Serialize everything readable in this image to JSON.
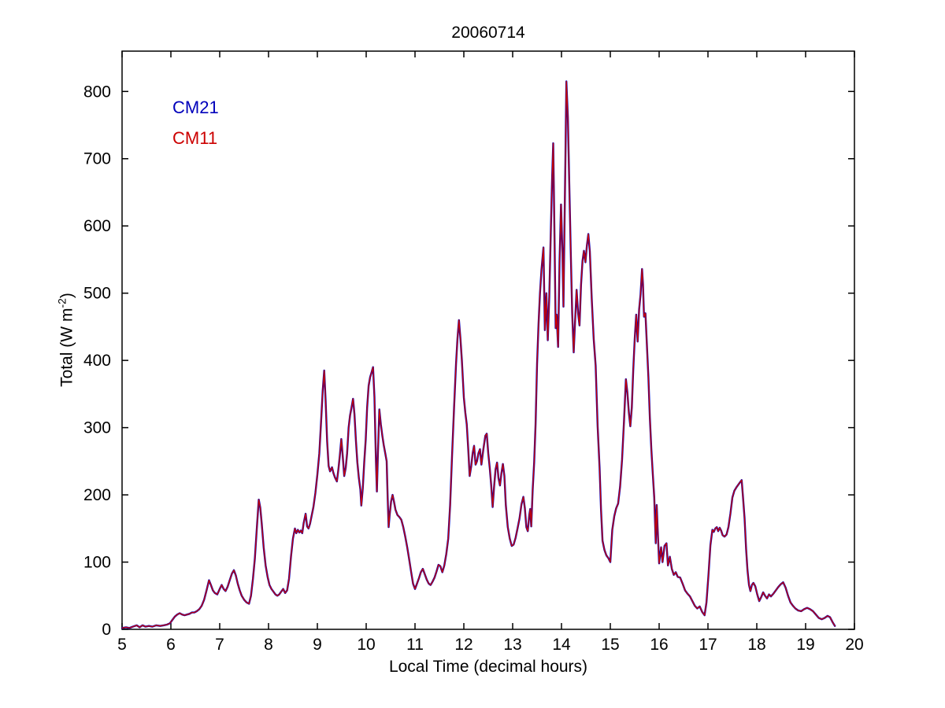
{
  "chart_data": {
    "type": "line",
    "title": "20060714",
    "xlabel": "Local Time (decimal hours)",
    "ylabel": "Total (W m-2)",
    "ylabel_parts": {
      "main": "Total (W m",
      "sup": "-2",
      "close": ")"
    },
    "xlim": [
      5,
      20
    ],
    "ylim": [
      0,
      860
    ],
    "xticks": [
      5,
      6,
      7,
      8,
      9,
      10,
      11,
      12,
      13,
      14,
      15,
      16,
      17,
      18,
      19,
      20
    ],
    "yticks": [
      0,
      100,
      200,
      300,
      400,
      500,
      600,
      700,
      800
    ],
    "grid": false,
    "legend": {
      "position": "top-left-inside",
      "entries": [
        {
          "label": "CM21",
          "color": "#0000BB"
        },
        {
          "label": "CM11",
          "color": "#CC0000"
        }
      ]
    },
    "series": [
      {
        "name": "CM21",
        "color": "#0000BB",
        "stroke_width": 2.4,
        "points_ref": "points"
      },
      {
        "name": "CM11",
        "color": "#CC0000",
        "stroke_width": 1.3,
        "points_ref": "points"
      }
    ],
    "points_note": "CM21 (blue) and CM11 (red) overlap almost exactly; shared point list [decimal_hour, total_W_m-2]",
    "points": [
      [
        5.0,
        2
      ],
      [
        5.08,
        3
      ],
      [
        5.15,
        2
      ],
      [
        5.22,
        4
      ],
      [
        5.3,
        6
      ],
      [
        5.36,
        3
      ],
      [
        5.42,
        6
      ],
      [
        5.48,
        4
      ],
      [
        5.55,
        5
      ],
      [
        5.62,
        4
      ],
      [
        5.7,
        6
      ],
      [
        5.78,
        5
      ],
      [
        5.85,
        6
      ],
      [
        5.92,
        7
      ],
      [
        5.98,
        9
      ],
      [
        6.03,
        14
      ],
      [
        6.08,
        19
      ],
      [
        6.13,
        22
      ],
      [
        6.18,
        24
      ],
      [
        6.23,
        22
      ],
      [
        6.28,
        21
      ],
      [
        6.33,
        22
      ],
      [
        6.38,
        23
      ],
      [
        6.43,
        25
      ],
      [
        6.48,
        25
      ],
      [
        6.53,
        27
      ],
      [
        6.58,
        30
      ],
      [
        6.63,
        35
      ],
      [
        6.68,
        44
      ],
      [
        6.73,
        58
      ],
      [
        6.78,
        73
      ],
      [
        6.82,
        66
      ],
      [
        6.86,
        58
      ],
      [
        6.9,
        54
      ],
      [
        6.95,
        52
      ],
      [
        7.0,
        60
      ],
      [
        7.04,
        66
      ],
      [
        7.08,
        60
      ],
      [
        7.12,
        57
      ],
      [
        7.16,
        63
      ],
      [
        7.2,
        72
      ],
      [
        7.25,
        83
      ],
      [
        7.29,
        88
      ],
      [
        7.33,
        80
      ],
      [
        7.37,
        68
      ],
      [
        7.41,
        58
      ],
      [
        7.45,
        50
      ],
      [
        7.5,
        44
      ],
      [
        7.55,
        40
      ],
      [
        7.6,
        38
      ],
      [
        7.64,
        50
      ],
      [
        7.68,
        75
      ],
      [
        7.72,
        105
      ],
      [
        7.76,
        150
      ],
      [
        7.8,
        193
      ],
      [
        7.83,
        181
      ],
      [
        7.86,
        158
      ],
      [
        7.9,
        122
      ],
      [
        7.94,
        95
      ],
      [
        7.98,
        78
      ],
      [
        8.02,
        66
      ],
      [
        8.06,
        60
      ],
      [
        8.1,
        56
      ],
      [
        8.14,
        52
      ],
      [
        8.18,
        50
      ],
      [
        8.22,
        52
      ],
      [
        8.26,
        56
      ],
      [
        8.3,
        60
      ],
      [
        8.34,
        54
      ],
      [
        8.38,
        58
      ],
      [
        8.42,
        75
      ],
      [
        8.46,
        108
      ],
      [
        8.5,
        135
      ],
      [
        8.54,
        150
      ],
      [
        8.57,
        143
      ],
      [
        8.6,
        148
      ],
      [
        8.63,
        144
      ],
      [
        8.66,
        147
      ],
      [
        8.69,
        143
      ],
      [
        8.72,
        158
      ],
      [
        8.76,
        172
      ],
      [
        8.79,
        153
      ],
      [
        8.82,
        150
      ],
      [
        8.85,
        157
      ],
      [
        8.88,
        168
      ],
      [
        8.92,
        182
      ],
      [
        8.96,
        203
      ],
      [
        9.0,
        230
      ],
      [
        9.04,
        262
      ],
      [
        9.08,
        315
      ],
      [
        9.11,
        355
      ],
      [
        9.14,
        385
      ],
      [
        9.17,
        340
      ],
      [
        9.2,
        280
      ],
      [
        9.23,
        243
      ],
      [
        9.26,
        235
      ],
      [
        9.3,
        241
      ],
      [
        9.33,
        232
      ],
      [
        9.36,
        226
      ],
      [
        9.4,
        220
      ],
      [
        9.43,
        238
      ],
      [
        9.46,
        258
      ],
      [
        9.49,
        283
      ],
      [
        9.52,
        258
      ],
      [
        9.55,
        228
      ],
      [
        9.58,
        240
      ],
      [
        9.61,
        262
      ],
      [
        9.64,
        300
      ],
      [
        9.67,
        318
      ],
      [
        9.7,
        330
      ],
      [
        9.73,
        343
      ],
      [
        9.76,
        320
      ],
      [
        9.79,
        280
      ],
      [
        9.82,
        248
      ],
      [
        9.85,
        225
      ],
      [
        9.88,
        208
      ],
      [
        9.9,
        184
      ],
      [
        9.93,
        210
      ],
      [
        9.96,
        248
      ],
      [
        9.99,
        282
      ],
      [
        10.02,
        330
      ],
      [
        10.05,
        362
      ],
      [
        10.08,
        375
      ],
      [
        10.11,
        382
      ],
      [
        10.14,
        390
      ],
      [
        10.17,
        345
      ],
      [
        10.2,
        250
      ],
      [
        10.22,
        205
      ],
      [
        10.24,
        262
      ],
      [
        10.27,
        327
      ],
      [
        10.3,
        305
      ],
      [
        10.33,
        288
      ],
      [
        10.36,
        274
      ],
      [
        10.39,
        262
      ],
      [
        10.42,
        250
      ],
      [
        10.44,
        195
      ],
      [
        10.46,
        152
      ],
      [
        10.48,
        170
      ],
      [
        10.51,
        190
      ],
      [
        10.54,
        200
      ],
      [
        10.57,
        190
      ],
      [
        10.6,
        178
      ],
      [
        10.64,
        170
      ],
      [
        10.68,
        167
      ],
      [
        10.72,
        163
      ],
      [
        10.76,
        152
      ],
      [
        10.8,
        138
      ],
      [
        10.84,
        122
      ],
      [
        10.88,
        104
      ],
      [
        10.92,
        86
      ],
      [
        10.96,
        68
      ],
      [
        11.0,
        60
      ],
      [
        11.04,
        68
      ],
      [
        11.08,
        76
      ],
      [
        11.12,
        85
      ],
      [
        11.16,
        90
      ],
      [
        11.2,
        82
      ],
      [
        11.24,
        74
      ],
      [
        11.28,
        68
      ],
      [
        11.32,
        66
      ],
      [
        11.36,
        71
      ],
      [
        11.4,
        77
      ],
      [
        11.44,
        86
      ],
      [
        11.48,
        96
      ],
      [
        11.52,
        94
      ],
      [
        11.56,
        85
      ],
      [
        11.6,
        95
      ],
      [
        11.64,
        112
      ],
      [
        11.68,
        135
      ],
      [
        11.72,
        185
      ],
      [
        11.76,
        260
      ],
      [
        11.8,
        330
      ],
      [
        11.84,
        395
      ],
      [
        11.87,
        432
      ],
      [
        11.9,
        460
      ],
      [
        11.93,
        432
      ],
      [
        11.96,
        400
      ],
      [
        12.0,
        345
      ],
      [
        12.03,
        322
      ],
      [
        12.06,
        305
      ],
      [
        12.09,
        268
      ],
      [
        12.12,
        228
      ],
      [
        12.15,
        242
      ],
      [
        12.18,
        262
      ],
      [
        12.21,
        273
      ],
      [
        12.24,
        245
      ],
      [
        12.27,
        250
      ],
      [
        12.3,
        262
      ],
      [
        12.33,
        268
      ],
      [
        12.36,
        245
      ],
      [
        12.4,
        268
      ],
      [
        12.44,
        288
      ],
      [
        12.47,
        291
      ],
      [
        12.5,
        262
      ],
      [
        12.53,
        240
      ],
      [
        12.56,
        215
      ],
      [
        12.59,
        182
      ],
      [
        12.62,
        212
      ],
      [
        12.65,
        238
      ],
      [
        12.68,
        248
      ],
      [
        12.71,
        225
      ],
      [
        12.74,
        214
      ],
      [
        12.77,
        232
      ],
      [
        12.8,
        246
      ],
      [
        12.83,
        228
      ],
      [
        12.86,
        185
      ],
      [
        12.9,
        152
      ],
      [
        12.94,
        135
      ],
      [
        12.98,
        124
      ],
      [
        13.02,
        126
      ],
      [
        13.06,
        136
      ],
      [
        13.1,
        150
      ],
      [
        13.14,
        165
      ],
      [
        13.18,
        186
      ],
      [
        13.22,
        197
      ],
      [
        13.25,
        180
      ],
      [
        13.28,
        152
      ],
      [
        13.31,
        146
      ],
      [
        13.34,
        170
      ],
      [
        13.36,
        179
      ],
      [
        13.38,
        153
      ],
      [
        13.41,
        207
      ],
      [
        13.44,
        248
      ],
      [
        13.47,
        305
      ],
      [
        13.5,
        395
      ],
      [
        13.53,
        455
      ],
      [
        13.56,
        500
      ],
      [
        13.59,
        535
      ],
      [
        13.63,
        568
      ],
      [
        13.66,
        445
      ],
      [
        13.69,
        500
      ],
      [
        13.72,
        430
      ],
      [
        13.75,
        495
      ],
      [
        13.78,
        590
      ],
      [
        13.81,
        675
      ],
      [
        13.83,
        723
      ],
      [
        13.86,
        570
      ],
      [
        13.88,
        448
      ],
      [
        13.9,
        468
      ],
      [
        13.93,
        420
      ],
      [
        13.96,
        545
      ],
      [
        13.99,
        632
      ],
      [
        14.02,
        560
      ],
      [
        14.04,
        480
      ],
      [
        14.06,
        590
      ],
      [
        14.08,
        700
      ],
      [
        14.1,
        815
      ],
      [
        14.13,
        762
      ],
      [
        14.16,
        662
      ],
      [
        14.19,
        560
      ],
      [
        14.22,
        470
      ],
      [
        14.25,
        412
      ],
      [
        14.28,
        462
      ],
      [
        14.31,
        505
      ],
      [
        14.34,
        470
      ],
      [
        14.37,
        452
      ],
      [
        14.4,
        512
      ],
      [
        14.43,
        548
      ],
      [
        14.46,
        563
      ],
      [
        14.49,
        546
      ],
      [
        14.52,
        570
      ],
      [
        14.55,
        588
      ],
      [
        14.58,
        562
      ],
      [
        14.62,
        492
      ],
      [
        14.66,
        432
      ],
      [
        14.7,
        392
      ],
      [
        14.74,
        302
      ],
      [
        14.78,
        240
      ],
      [
        14.81,
        178
      ],
      [
        14.84,
        132
      ],
      [
        14.88,
        118
      ],
      [
        14.92,
        110
      ],
      [
        14.96,
        106
      ],
      [
        15.0,
        100
      ],
      [
        15.04,
        148
      ],
      [
        15.08,
        168
      ],
      [
        15.12,
        180
      ],
      [
        15.16,
        187
      ],
      [
        15.2,
        212
      ],
      [
        15.24,
        252
      ],
      [
        15.28,
        310
      ],
      [
        15.32,
        372
      ],
      [
        15.35,
        352
      ],
      [
        15.38,
        322
      ],
      [
        15.41,
        302
      ],
      [
        15.44,
        330
      ],
      [
        15.47,
        385
      ],
      [
        15.5,
        432
      ],
      [
        15.53,
        468
      ],
      [
        15.56,
        428
      ],
      [
        15.59,
        476
      ],
      [
        15.62,
        498
      ],
      [
        15.65,
        536
      ],
      [
        15.67,
        513
      ],
      [
        15.69,
        465
      ],
      [
        15.72,
        470
      ],
      [
        15.75,
        422
      ],
      [
        15.78,
        374
      ],
      [
        15.81,
        315
      ],
      [
        15.84,
        268
      ],
      [
        15.87,
        232
      ],
      [
        15.9,
        196
      ],
      [
        15.93,
        128
      ],
      [
        15.95,
        185
      ],
      [
        15.97,
        150
      ],
      [
        16.0,
        98
      ],
      [
        16.04,
        122
      ],
      [
        16.07,
        100
      ],
      [
        16.11,
        124
      ],
      [
        16.15,
        128
      ],
      [
        16.18,
        95
      ],
      [
        16.22,
        108
      ],
      [
        16.26,
        90
      ],
      [
        16.3,
        81
      ],
      [
        16.34,
        85
      ],
      [
        16.38,
        78
      ],
      [
        16.43,
        77
      ],
      [
        16.48,
        68
      ],
      [
        16.53,
        58
      ],
      [
        16.58,
        53
      ],
      [
        16.63,
        49
      ],
      [
        16.68,
        42
      ],
      [
        16.73,
        35
      ],
      [
        16.78,
        31
      ],
      [
        16.83,
        34
      ],
      [
        16.88,
        26
      ],
      [
        16.93,
        21
      ],
      [
        16.97,
        40
      ],
      [
        17.01,
        80
      ],
      [
        17.05,
        125
      ],
      [
        17.09,
        148
      ],
      [
        17.12,
        145
      ],
      [
        17.15,
        150
      ],
      [
        17.18,
        152
      ],
      [
        17.21,
        146
      ],
      [
        17.24,
        151
      ],
      [
        17.27,
        147
      ],
      [
        17.3,
        140
      ],
      [
        17.34,
        138
      ],
      [
        17.38,
        141
      ],
      [
        17.42,
        152
      ],
      [
        17.46,
        172
      ],
      [
        17.5,
        196
      ],
      [
        17.54,
        206
      ],
      [
        17.58,
        211
      ],
      [
        17.62,
        215
      ],
      [
        17.66,
        219
      ],
      [
        17.69,
        222
      ],
      [
        17.72,
        195
      ],
      [
        17.75,
        165
      ],
      [
        17.78,
        120
      ],
      [
        17.81,
        88
      ],
      [
        17.84,
        66
      ],
      [
        17.87,
        57
      ],
      [
        17.9,
        66
      ],
      [
        17.93,
        69
      ],
      [
        17.97,
        64
      ],
      [
        18.01,
        52
      ],
      [
        18.05,
        42
      ],
      [
        18.09,
        48
      ],
      [
        18.13,
        55
      ],
      [
        18.17,
        50
      ],
      [
        18.21,
        46
      ],
      [
        18.25,
        52
      ],
      [
        18.29,
        49
      ],
      [
        18.34,
        53
      ],
      [
        18.39,
        58
      ],
      [
        18.44,
        63
      ],
      [
        18.49,
        67
      ],
      [
        18.54,
        70
      ],
      [
        18.59,
        62
      ],
      [
        18.64,
        50
      ],
      [
        18.69,
        40
      ],
      [
        18.74,
        35
      ],
      [
        18.79,
        31
      ],
      [
        18.85,
        28
      ],
      [
        18.91,
        27
      ],
      [
        18.97,
        30
      ],
      [
        19.03,
        32
      ],
      [
        19.09,
        30
      ],
      [
        19.15,
        27
      ],
      [
        19.21,
        22
      ],
      [
        19.27,
        17
      ],
      [
        19.33,
        15
      ],
      [
        19.39,
        17
      ],
      [
        19.45,
        20
      ],
      [
        19.5,
        18
      ],
      [
        19.55,
        11
      ],
      [
        19.6,
        5
      ]
    ]
  }
}
